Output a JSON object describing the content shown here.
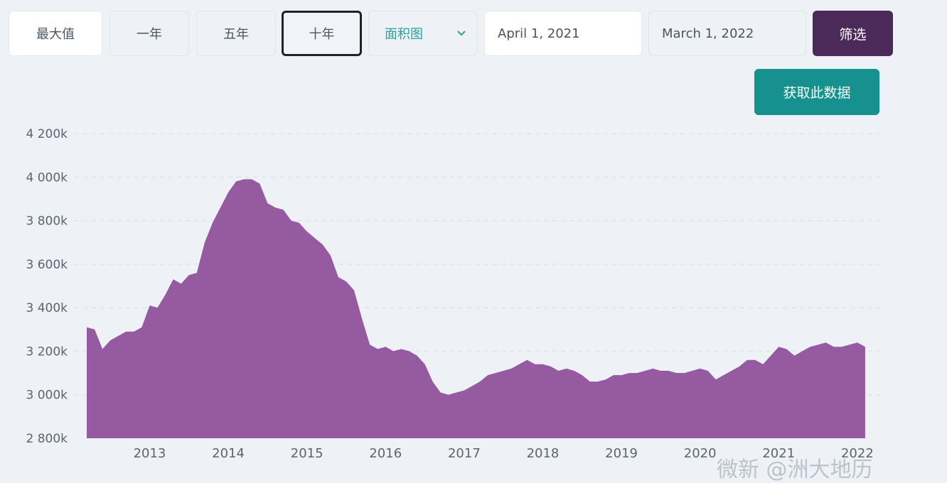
{
  "toolbar": {
    "range_buttons": [
      "最大值",
      "一年",
      "五年",
      "十年"
    ],
    "active_range": "十年",
    "chart_type_select": "面积图",
    "date_from": "April 1, 2021",
    "date_to": "March 1, 2022",
    "filter_label": "筛选",
    "fetch_label": "获取此数据"
  },
  "watermark": "微新 @洲大地历",
  "colors": {
    "area": "#955aa0",
    "active_border": "#222222",
    "filter_bg": "#4b2a5a",
    "fetch_bg": "#17918f",
    "select_text": "#2a9fa0"
  },
  "chart_data": {
    "type": "area",
    "x_tick_labels": [
      "2013",
      "2014",
      "2015",
      "2016",
      "2017",
      "2018",
      "2019",
      "2020",
      "2021",
      "2022"
    ],
    "y_tick_labels": [
      "2 800k",
      "3 000k",
      "3 200k",
      "3 400k",
      "3 600k",
      "3 800k",
      "4 000k",
      "4 200k"
    ],
    "ylim": [
      2800,
      4200
    ],
    "xlim": [
      2012.2,
      2022.2
    ],
    "grid": true,
    "legend": "none",
    "x": [
      2012.2,
      2012.3,
      2012.4,
      2012.5,
      2012.6,
      2012.7,
      2012.8,
      2012.9,
      2013.0,
      2013.1,
      2013.2,
      2013.3,
      2013.4,
      2013.5,
      2013.6,
      2013.7,
      2013.8,
      2013.9,
      2014.0,
      2014.1,
      2014.2,
      2014.3,
      2014.4,
      2014.5,
      2014.6,
      2014.7,
      2014.8,
      2014.9,
      2015.0,
      2015.1,
      2015.2,
      2015.3,
      2015.4,
      2015.5,
      2015.6,
      2015.7,
      2015.8,
      2015.9,
      2016.0,
      2016.1,
      2016.2,
      2016.3,
      2016.4,
      2016.5,
      2016.6,
      2016.7,
      2016.8,
      2016.9,
      2017.0,
      2017.1,
      2017.2,
      2017.3,
      2017.4,
      2017.5,
      2017.6,
      2017.7,
      2017.8,
      2017.9,
      2018.0,
      2018.1,
      2018.2,
      2018.3,
      2018.4,
      2018.5,
      2018.6,
      2018.7,
      2018.8,
      2018.9,
      2019.0,
      2019.1,
      2019.2,
      2019.3,
      2019.4,
      2019.5,
      2019.6,
      2019.7,
      2019.8,
      2019.9,
      2020.0,
      2020.1,
      2020.2,
      2020.3,
      2020.4,
      2020.5,
      2020.6,
      2020.7,
      2020.8,
      2020.9,
      2021.0,
      2021.1,
      2021.2,
      2021.3,
      2021.4,
      2021.5,
      2021.6,
      2021.7,
      2021.8,
      2021.9,
      2022.0,
      2022.1
    ],
    "values": [
      3310,
      3300,
      3210,
      3250,
      3270,
      3290,
      3290,
      3310,
      3410,
      3400,
      3460,
      3530,
      3510,
      3550,
      3560,
      3700,
      3790,
      3860,
      3930,
      3980,
      3990,
      3990,
      3970,
      3880,
      3860,
      3850,
      3800,
      3790,
      3750,
      3720,
      3690,
      3640,
      3540,
      3520,
      3480,
      3350,
      3230,
      3210,
      3220,
      3200,
      3210,
      3200,
      3180,
      3140,
      3060,
      3010,
      3000,
      3010,
      3020,
      3040,
      3060,
      3090,
      3100,
      3110,
      3120,
      3140,
      3160,
      3140,
      3140,
      3130,
      3110,
      3120,
      3110,
      3090,
      3060,
      3060,
      3070,
      3090,
      3090,
      3100,
      3100,
      3110,
      3120,
      3110,
      3110,
      3100,
      3100,
      3110,
      3120,
      3110,
      3070,
      3090,
      3110,
      3130,
      3160,
      3160,
      3140,
      3180,
      3220,
      3210,
      3180,
      3200,
      3220,
      3230,
      3240,
      3220,
      3220,
      3230,
      3240,
      3220
    ]
  }
}
